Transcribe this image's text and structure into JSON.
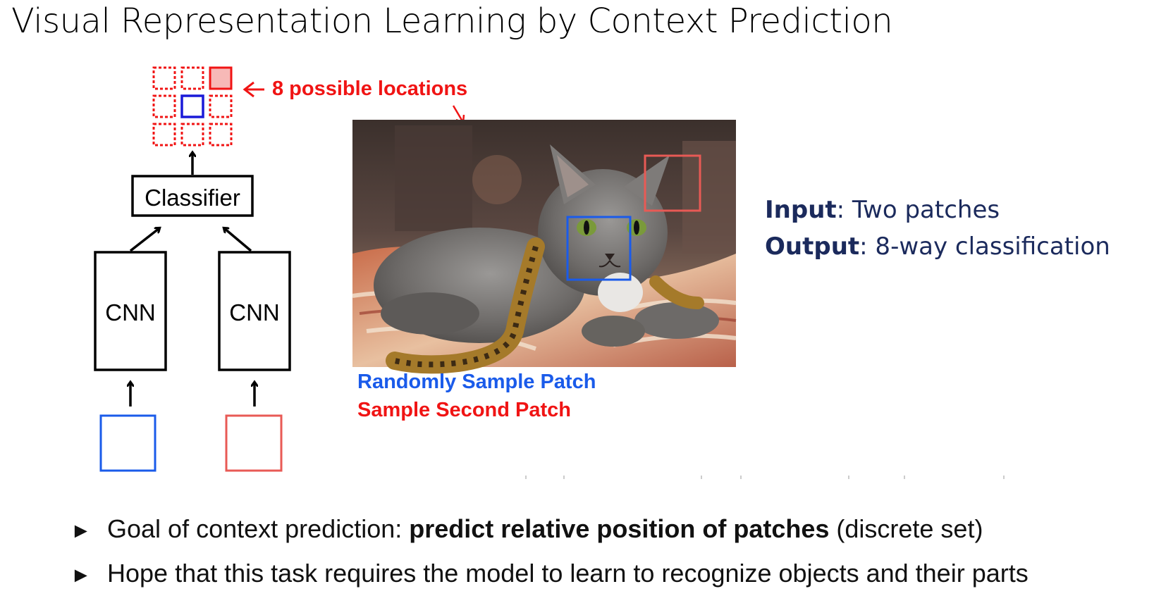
{
  "title": "Visual Representation Learning by Context Prediction",
  "diagram": {
    "grid_annotation": "8 possible locations",
    "classifier_label": "Classifier",
    "cnn_left_label": "CNN",
    "cnn_right_label": "CNN",
    "caption_first_patch": "Randomly Sample Patch",
    "caption_second_patch": "Sample Second Patch"
  },
  "io": {
    "input_key": "Input",
    "input_value": ": Two patches",
    "output_key": "Output",
    "output_value": ": 8-way classification"
  },
  "bullets": [
    {
      "pre": "Goal of context prediction: ",
      "bold": "predict relative position of patches",
      "post": " (discrete set)"
    },
    {
      "pre": "Hope that this task requires the model to learn to recognize objects and their parts",
      "bold": "",
      "post": ""
    }
  ],
  "colors": {
    "blue_patch": "#1a5bea",
    "red_patch": "#e85a55",
    "annotation_red": "#f01414",
    "io_text": "#1b2a5c"
  },
  "icons": {
    "bullet": "triangle-right-icon"
  }
}
